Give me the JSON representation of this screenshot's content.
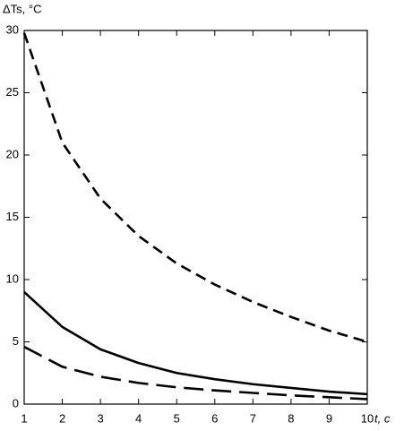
{
  "chart_data": {
    "type": "line",
    "ylabel": "ΔTs, °C",
    "xlabel": "t, c",
    "x": [
      1,
      2,
      3,
      4,
      5,
      6,
      7,
      8,
      9,
      10
    ],
    "series": [
      {
        "color": "#000000",
        "line_style": "dashed",
        "values": [
          29.8,
          21,
          16.5,
          13.5,
          11.3,
          9.6,
          8.2,
          7,
          5.9,
          5.0
        ]
      },
      {
        "color": "#000000",
        "line_style": "solid",
        "values": [
          9,
          6.2,
          4.4,
          3.3,
          2.5,
          2.0,
          1.6,
          1.3,
          1.0,
          0.8
        ]
      },
      {
        "color": "#000000",
        "line_style": "long-dashed",
        "values": [
          4.6,
          3.0,
          2.2,
          1.7,
          1.35,
          1.1,
          0.9,
          0.7,
          0.55,
          0.4
        ]
      }
    ],
    "xlim": [
      1,
      10
    ],
    "xticks": [
      1,
      2,
      3,
      4,
      5,
      6,
      7,
      8,
      9,
      10
    ],
    "ylim": [
      0,
      30
    ],
    "yticks": [
      0,
      5,
      10,
      15,
      20,
      25,
      30
    ],
    "grid": false
  }
}
